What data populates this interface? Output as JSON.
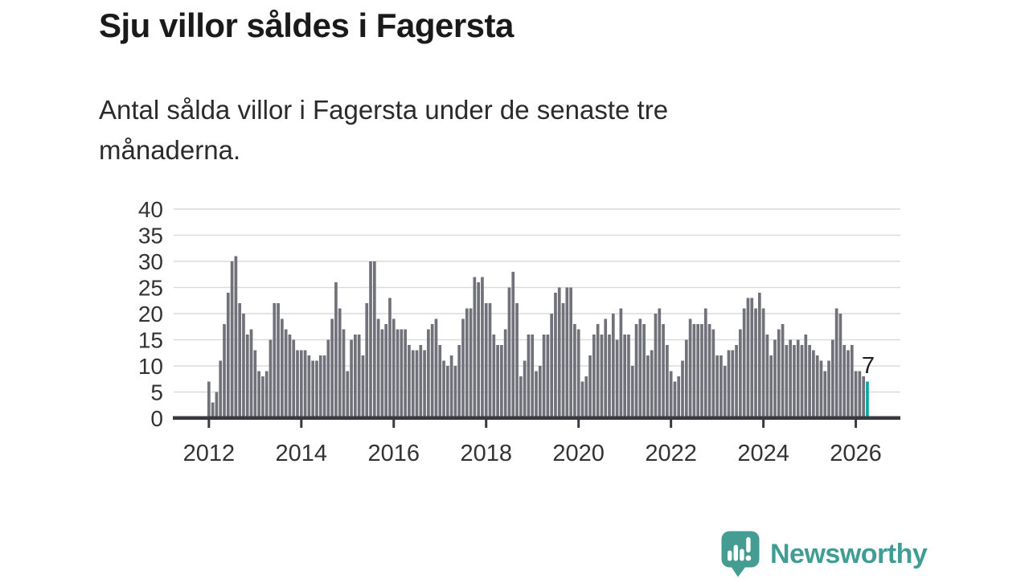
{
  "header": {
    "title": "Sju villor såldes i Fagersta",
    "subtitle": "Antal sålda villor i Fagersta under de senaste tre månaderna."
  },
  "chart_data": {
    "type": "bar",
    "title": "Sju villor såldes i Fagersta",
    "subtitle": "Antal sålda villor i Fagersta under de senaste tre månaderna.",
    "x_unit": "month",
    "x_start": "2012-01",
    "x_interval": "monthly",
    "ylim": [
      0,
      40
    ],
    "y_ticks": [
      0,
      5,
      10,
      15,
      20,
      25,
      30,
      35,
      40
    ],
    "x_tick_years": [
      2012,
      2014,
      2016,
      2018,
      2020,
      2022,
      2024,
      2026
    ],
    "grid": true,
    "highlight_last": true,
    "annotation_label": "7",
    "values": [
      7,
      3,
      5,
      11,
      18,
      24,
      30,
      31,
      22,
      20,
      16,
      17,
      13,
      9,
      8,
      9,
      15,
      22,
      22,
      19,
      17,
      16,
      15,
      13,
      13,
      13,
      12,
      11,
      11,
      12,
      12,
      15,
      19,
      26,
      21,
      17,
      9,
      15,
      16,
      16,
      12,
      22,
      30,
      30,
      19,
      17,
      18,
      23,
      19,
      17,
      17,
      17,
      14,
      13,
      13,
      14,
      13,
      17,
      18,
      19,
      14,
      11,
      10,
      12,
      10,
      14,
      19,
      21,
      21,
      27,
      26,
      27,
      22,
      22,
      16,
      14,
      14,
      17,
      25,
      28,
      22,
      8,
      11,
      16,
      16,
      9,
      10,
      16,
      16,
      20,
      24,
      25,
      22,
      25,
      25,
      18,
      17,
      7,
      8,
      12,
      16,
      18,
      16,
      19,
      16,
      20,
      15,
      21,
      16,
      16,
      10,
      18,
      19,
      18,
      12,
      13,
      20,
      21,
      18,
      14,
      9,
      7,
      8,
      11,
      15,
      19,
      18,
      18,
      18,
      21,
      18,
      17,
      12,
      12,
      10,
      13,
      13,
      14,
      17,
      21,
      23,
      23,
      21,
      24,
      21,
      16,
      12,
      15,
      17,
      18,
      14,
      15,
      14,
      15,
      14,
      16,
      14,
      13,
      12,
      11,
      9,
      11,
      15,
      21,
      20,
      14,
      13,
      14,
      9,
      9,
      8,
      7
    ],
    "colors": {
      "bar": "#71717a",
      "highlight": "#0ba7a0",
      "grid": "#dcdcdc",
      "axis": "#3a3a3e",
      "tick_label": "#333333",
      "annotation": "#1c1c1c"
    }
  },
  "footer": {
    "brand": "Newsworthy",
    "brand_color": "#3f9d94",
    "mark_color": "#459c93"
  }
}
